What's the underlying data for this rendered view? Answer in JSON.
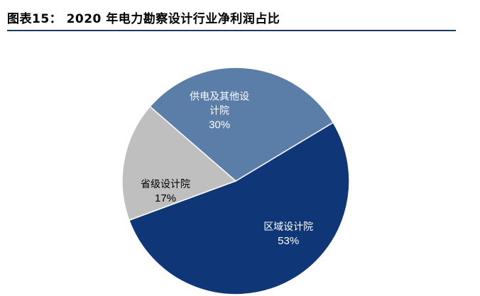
{
  "header": {
    "title": "图表15：  2020 年电力勘察设计行业净利润占比"
  },
  "chart_data": {
    "type": "pie",
    "title": "2020 年电力勘察设计行业净利润占比",
    "slices": [
      {
        "label_lines": [
          "区域设计院"
        ],
        "percent_label": "53%",
        "value": 53,
        "color": "#0f3677",
        "text_color": "#ffffff"
      },
      {
        "label_lines": [
          "省级设计院"
        ],
        "percent_label": "17%",
        "value": 17,
        "color": "#bfbfbf",
        "text_color": "#000000"
      },
      {
        "label_lines": [
          "供电及其他设",
          "计院"
        ],
        "percent_label": "30%",
        "value": 30,
        "color": "#5b7ea8",
        "text_color": "#ffffff"
      }
    ],
    "start_angle_deg": 31,
    "direction": "clockwise",
    "slice_border_color": "#ffffff",
    "legend": "none"
  }
}
